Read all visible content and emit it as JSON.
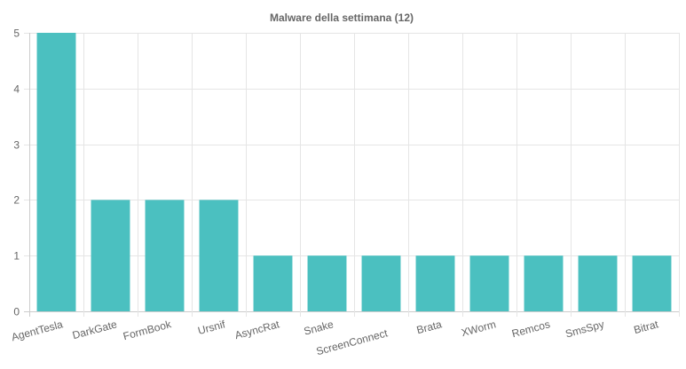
{
  "chart_data": {
    "type": "bar",
    "title": "Malware della settimana (12)",
    "xlabel": "",
    "ylabel": "",
    "categories": [
      "AgentTesla",
      "DarkGate",
      "FormBook",
      "Ursnif",
      "AsyncRat",
      "Snake",
      "ScreenConnect",
      "Brata",
      "XWorm",
      "Remcos",
      "SmsSpy",
      "Bitrat"
    ],
    "values": [
      5,
      2,
      2,
      2,
      1,
      1,
      1,
      1,
      1,
      1,
      1,
      1
    ],
    "ylim": [
      0,
      5
    ],
    "yticks": [
      "0",
      "1",
      "2",
      "3",
      "4",
      "5"
    ],
    "grid": true,
    "legend": "none",
    "bar_color": "#4bc0c0",
    "grid_color": "#e5e5e5",
    "text_color": "#666666"
  }
}
